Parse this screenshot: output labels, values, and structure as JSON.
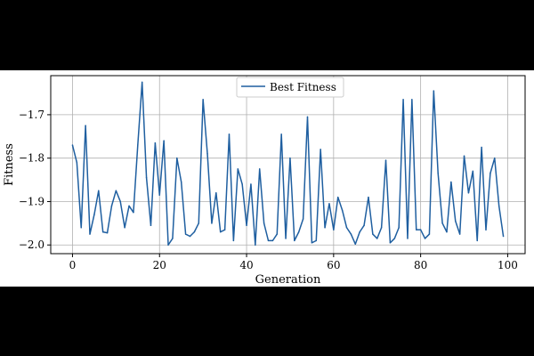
{
  "chart_data": {
    "type": "line",
    "xlabel": "Generation",
    "ylabel": "Fitness",
    "xlim": [
      -5,
      104
    ],
    "ylim": [
      -2.02,
      -1.61
    ],
    "xticks": [
      0,
      20,
      40,
      60,
      80,
      100
    ],
    "xtick_labels": [
      "0",
      "20",
      "40",
      "60",
      "80",
      "100"
    ],
    "yticks": [
      -2.0,
      -1.9,
      -1.8,
      -1.7
    ],
    "ytick_labels": [
      "−2.0",
      "−1.9",
      "−1.8",
      "−1.7"
    ],
    "grid": true,
    "legend_position": "top-center",
    "series": [
      {
        "name": "Best Fitness",
        "color": "#1f5fa0",
        "x": [
          0,
          1,
          2,
          3,
          4,
          5,
          6,
          7,
          8,
          9,
          10,
          11,
          12,
          13,
          14,
          15,
          16,
          17,
          18,
          19,
          20,
          21,
          22,
          23,
          24,
          25,
          26,
          27,
          28,
          29,
          30,
          31,
          32,
          33,
          34,
          35,
          36,
          37,
          38,
          39,
          40,
          41,
          42,
          43,
          44,
          45,
          46,
          47,
          48,
          49,
          50,
          51,
          52,
          53,
          54,
          55,
          56,
          57,
          58,
          59,
          60,
          61,
          62,
          63,
          64,
          65,
          66,
          67,
          68,
          69,
          70,
          71,
          72,
          73,
          74,
          75,
          76,
          77,
          78,
          79,
          80,
          81,
          82,
          83,
          84,
          85,
          86,
          87,
          88,
          89,
          90,
          91,
          92,
          93,
          94,
          95,
          96,
          97,
          98,
          99
        ],
        "y": [
          -1.77,
          -1.81,
          -1.96,
          -1.725,
          -1.975,
          -1.93,
          -1.875,
          -1.97,
          -1.972,
          -1.91,
          -1.875,
          -1.9,
          -1.96,
          -1.91,
          -1.925,
          -1.77,
          -1.625,
          -1.845,
          -1.955,
          -1.765,
          -1.885,
          -1.76,
          -2.0,
          -1.985,
          -1.8,
          -1.855,
          -1.975,
          -1.98,
          -1.97,
          -1.95,
          -1.665,
          -1.79,
          -1.95,
          -1.88,
          -1.97,
          -1.965,
          -1.745,
          -1.99,
          -1.825,
          -1.86,
          -1.955,
          -1.86,
          -2.0,
          -1.825,
          -1.95,
          -1.99,
          -1.99,
          -1.975,
          -1.745,
          -1.985,
          -1.8,
          -1.99,
          -1.97,
          -1.94,
          -1.705,
          -1.995,
          -1.99,
          -1.78,
          -1.96,
          -1.905,
          -1.965,
          -1.89,
          -1.92,
          -1.96,
          -1.975,
          -1.998,
          -1.97,
          -1.955,
          -1.89,
          -1.975,
          -1.985,
          -1.96,
          -1.805,
          -1.995,
          -1.985,
          -1.96,
          -1.665,
          -1.985,
          -1.665,
          -1.965,
          -1.965,
          -1.985,
          -1.975,
          -1.645,
          -1.835,
          -1.95,
          -1.97,
          -1.855,
          -1.945,
          -1.975,
          -1.795,
          -1.88,
          -1.83,
          -1.99,
          -1.775,
          -1.965,
          -1.835,
          -1.8,
          -1.91,
          -1.98
        ]
      }
    ]
  }
}
